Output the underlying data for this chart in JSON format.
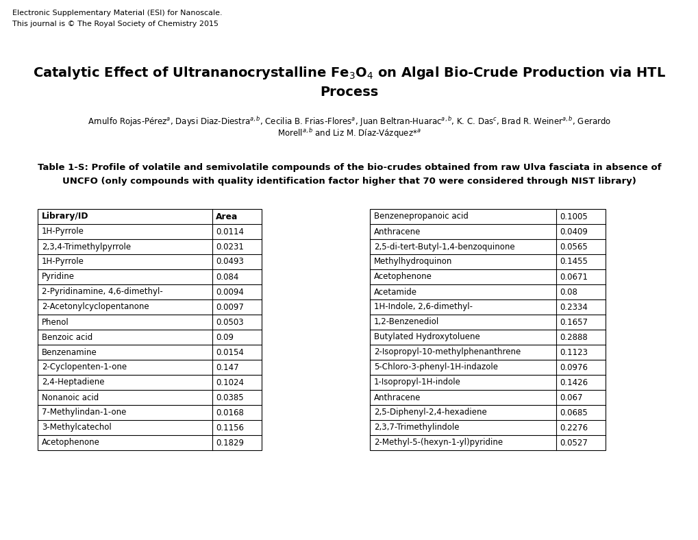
{
  "header_line1": "Electronic Supplementary Material (ESI) for Nanoscale.",
  "header_line2": "This journal is © The Royal Society of Chemistry 2015",
  "title1": "Catalytic Effect of Ultrananocrystalline Fe$_3$O$_4$ on Algal Bio-Crude Production via HTL",
  "title2": "Process",
  "authors1": "Arnulfo Rojas-Pérez$^a$, Daysi Diaz-Diestra$^{a,b}$, Cecilia B. Frias-Flores$^a$, Juan Beltran-Huarac$^{a,b}$, K. C. Das$^c$, Brad R. Weiner$^{a,b}$, Gerardo",
  "authors2": "Morell$^{a,b}$ and Liz M. Díaz-Vázquez*$^a$",
  "caption1": "Table 1-S: Profile of volatile and semivolatile compounds of the bio-crudes obtained from raw Ulva fasciata in absence of",
  "caption2": "UNCFO (only compounds with quality identification factor higher that 70 were considered through NIST library)",
  "left_header": [
    "Library/ID",
    "Area"
  ],
  "left_data": [
    [
      "1H-Pyrrole",
      "0.0114"
    ],
    [
      "2,3,4-Trimethylpyrrole",
      "0.0231"
    ],
    [
      "1H-Pyrrole",
      "0.0493"
    ],
    [
      "Pyridine",
      "0.084"
    ],
    [
      "2-Pyridinamine, 4,6-dimethyl-",
      "0.0094"
    ],
    [
      "2-Acetonylcyclopentanone",
      "0.0097"
    ],
    [
      "Phenol",
      "0.0503"
    ],
    [
      "Benzoic acid",
      "0.09"
    ],
    [
      "Benzenamine",
      "0.0154"
    ],
    [
      "2-Cyclopenten-1-one",
      "0.147"
    ],
    [
      "2,4-Heptadiene",
      "0.1024"
    ],
    [
      "Nonanoic acid",
      "0.0385"
    ],
    [
      "7-Methylindan-1-one",
      "0.0168"
    ],
    [
      "3-Methylcatechol",
      "0.1156"
    ],
    [
      "Acetophenone",
      "0.1829"
    ]
  ],
  "right_data": [
    [
      "Benzenepropanoic acid",
      "0.1005"
    ],
    [
      "Anthracene",
      "0.0409"
    ],
    [
      "2,5-di-tert-Butyl-1,4-benzoquinone",
      "0.0565"
    ],
    [
      "Methylhydroquinon",
      "0.1455"
    ],
    [
      "Acetophenone",
      "0.0671"
    ],
    [
      "Acetamide",
      "0.08"
    ],
    [
      "1H-Indole, 2,6-dimethyl-",
      "0.2334"
    ],
    [
      "1,2-Benzenediol",
      "0.1657"
    ],
    [
      "Butylated Hydroxytoluene",
      "0.2888"
    ],
    [
      "2-Isopropyl-10-methylphenanthrene",
      "0.1123"
    ],
    [
      "5-Chloro-3-phenyl-1H-indazole",
      "0.0976"
    ],
    [
      "1-Isopropyl-1H-indole",
      "0.1426"
    ],
    [
      "Anthracene",
      "0.067"
    ],
    [
      "2,5-Diphenyl-2,4-hexadiene",
      "0.0685"
    ],
    [
      "2,3,7-Trimethylindole",
      "0.2276"
    ],
    [
      "2-Methyl-5-(hexyn-1-yl)pyridine",
      "0.0527"
    ]
  ],
  "fig_width": 10.2,
  "fig_height": 7.88,
  "dpi": 100
}
